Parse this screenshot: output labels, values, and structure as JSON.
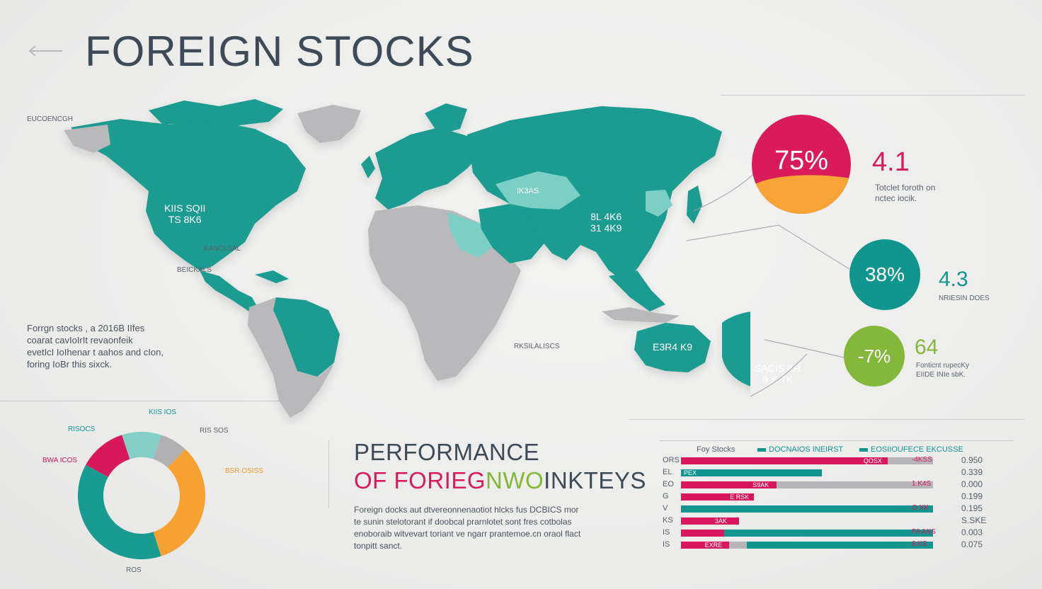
{
  "title": "FOREIGN STOCKS",
  "map": {
    "corner_label": "EUCOENCGH",
    "labels": {
      "na": [
        "KIIS SQII",
        "TS 8K6"
      ],
      "asia": [
        "8L 4K6",
        "31 4K9"
      ],
      "australia": "E3R4 K9",
      "south_pacific": [
        "SACIS KR",
        "9·K 7K"
      ],
      "central_asia": "IK3AS",
      "africa": "RKSILALISCS",
      "mexico": "BEICKALS",
      "caribbean": "KANCLSAL"
    },
    "colors": {
      "land": "#1a9b91",
      "land_light": "#7ccfc4",
      "land_grey": "#b9b9bb"
    }
  },
  "stats": [
    {
      "pct": "75%",
      "value": "4.1",
      "caption": [
        "Totclet foroth on",
        "nctec iocik."
      ],
      "color": "#d91b5c",
      "accent": "#f7a336",
      "share": 0.75
    },
    {
      "pct": "38%",
      "value": "4.3",
      "caption": [
        "NRIESIN DOES"
      ],
      "color": "#12958f",
      "accent": "#12958f",
      "share": 0.38
    },
    {
      "pct": "-7%",
      "value": "64",
      "caption": [
        "Fonticnt rupecKy",
        "EIIDE INIe sbK."
      ],
      "color": "#84b83a",
      "accent": "#84b83a",
      "share": 0.07
    }
  ],
  "left_note": [
    "Forrgn stocks , a 2016B IIfes",
    "coarat cavIoIrIt revaonfeik",
    "evetIcI IoIhenar t aahos and cIon,",
    "foring IoBr this sixck."
  ],
  "donut": {
    "segments": [
      {
        "label": "RISOCS",
        "value": 10,
        "color": "#86cfc7"
      },
      {
        "label": "RIS SOS",
        "value": 7,
        "color": "#b0b0b2"
      },
      {
        "label": "BSR OSISS",
        "value": 33,
        "color": "#f7a133"
      },
      {
        "label": "ROES",
        "value": 38,
        "color": "#1a9b91"
      },
      {
        "label": "BWA ICOS",
        "value": 12,
        "color": "#d7195b"
      }
    ],
    "bottom_label": "ROS",
    "top_label": "KIIS IOS"
  },
  "performance": {
    "line1": "PERFORMANCE",
    "line2_a": "OF FORIEG",
    "line2_b": "NWO",
    "line2_c": "INKTEYS",
    "text": [
      "Foreign docks  aut dtvereonnenaotiot hlcks fus DCBICS mor",
      "te sunin  stelotorant if doobcal prarnlotet sont fres cotbolas",
      "enoboraib witvevart toriant  ve ngarr prantemoe.cn oraol flact",
      "tonpitt  sanct."
    ]
  },
  "bar_chart": {
    "type": "bar",
    "header": {
      "category": "Foy Stocks",
      "series": [
        "DOCNAIOS INEIRST",
        "EOSIIOUFECE EKCUSSE"
      ]
    },
    "colors": {
      "pink": "#d8175d",
      "grey": "#b5b5b7",
      "teal": "#12958f"
    },
    "rows": [
      {
        "label": "ORS",
        "pink": 0.82,
        "grey": 0.18,
        "teal": 0.0,
        "inner": "QOSX",
        "end": "-4KSS",
        "value": "0.950"
      },
      {
        "label": "EL",
        "pink": 0.0,
        "grey": 0.0,
        "teal": 0.56,
        "inner": "PEX",
        "end": "",
        "value": "0.339"
      },
      {
        "label": "EO",
        "pink": 0.38,
        "grey": 0.62,
        "teal": 0.0,
        "inner": "S9AK",
        "end": "1.K4S",
        "value": "0.000"
      },
      {
        "label": "G",
        "pink": 0.29,
        "grey": 0.0,
        "teal": 0.0,
        "inner": "E RSK",
        "end": "",
        "value": "0.199"
      },
      {
        "label": "V",
        "pink": 0.0,
        "grey": 0.0,
        "teal": 1.0,
        "inner": "",
        "end": "O XK",
        "value": "0.195"
      },
      {
        "label": "KS",
        "pink": 0.23,
        "grey": 0.0,
        "teal": 0.0,
        "inner": "3AK",
        "end": "",
        "value": "S.SKE"
      },
      {
        "label": "IS",
        "pink": 0.17,
        "grey": 0.0,
        "teal": 0.91,
        "inner": "",
        "end": "F6 AKS",
        "value": "0.003"
      },
      {
        "label": "IS",
        "pink": 0.19,
        "grey": 0.07,
        "teal": 0.74,
        "inner": "EXRE",
        "end": "8.KS",
        "value": "0.075"
      }
    ]
  }
}
